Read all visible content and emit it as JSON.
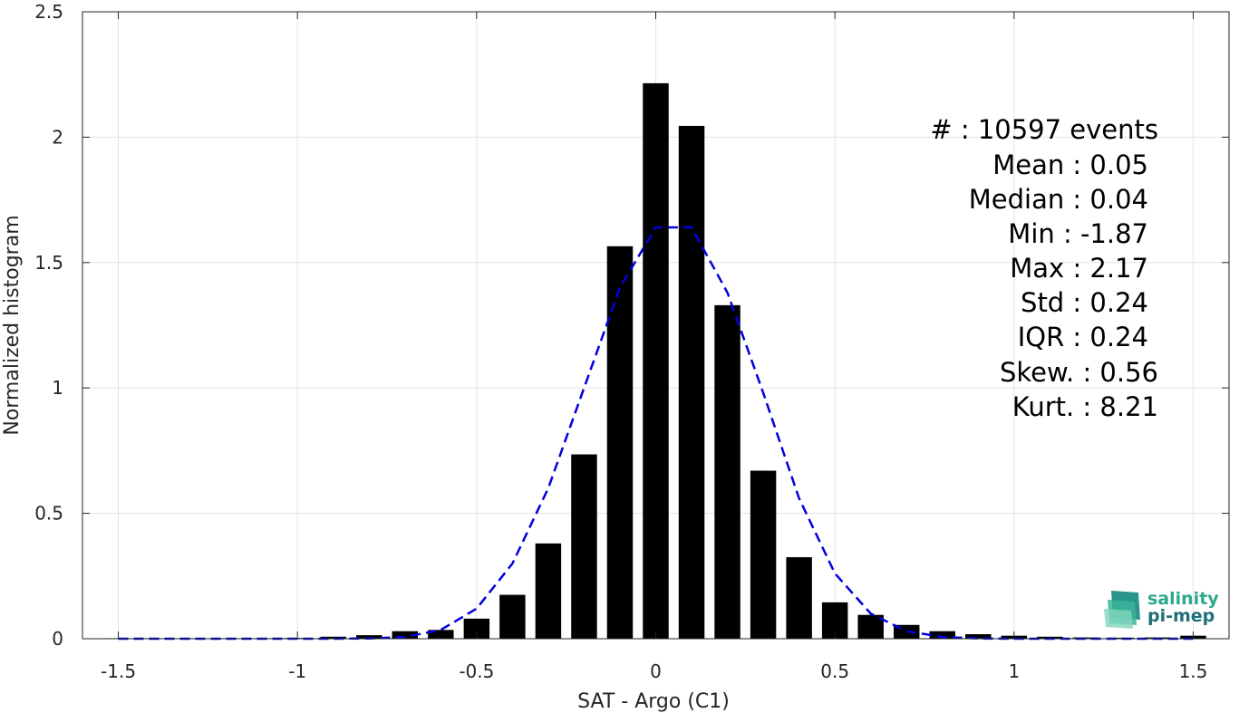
{
  "chart_data": {
    "type": "bar",
    "title": "",
    "xlabel": "SAT - Argo (C1)",
    "ylabel": "Normalized histogram",
    "xlim": [
      -1.6,
      1.6
    ],
    "ylim": [
      0,
      2.5
    ],
    "grid": true,
    "x_ticks": [
      "-1.5",
      "-1",
      "-0.5",
      "0",
      "0.5",
      "1",
      "1.5"
    ],
    "y_ticks": [
      "0",
      "0.5",
      "1",
      "1.5",
      "2",
      "2.5"
    ],
    "bin_width": 0.1,
    "histogram": {
      "x": [
        -1.5,
        -1.4,
        -1.3,
        -1.2,
        -1.1,
        -1.0,
        -0.9,
        -0.8,
        -0.7,
        -0.6,
        -0.5,
        -0.4,
        -0.3,
        -0.2,
        -0.1,
        0.0,
        0.1,
        0.2,
        0.3,
        0.4,
        0.5,
        0.6,
        0.7,
        0.8,
        0.9,
        1.0,
        1.1,
        1.2,
        1.3,
        1.4,
        1.5
      ],
      "values": [
        0.002,
        0.002,
        0.002,
        0.002,
        0.002,
        0.003,
        0.008,
        0.014,
        0.03,
        0.035,
        0.08,
        0.175,
        0.38,
        0.735,
        1.565,
        2.215,
        2.045,
        1.33,
        0.67,
        0.325,
        0.145,
        0.095,
        0.055,
        0.03,
        0.018,
        0.012,
        0.008,
        0.005,
        0.004,
        0.005,
        0.012
      ],
      "color": "#000000"
    },
    "fit_curve": {
      "style": "dashed",
      "color": "#0000dd",
      "x": [
        -1.5,
        -1.4,
        -1.3,
        -1.2,
        -1.1,
        -1.0,
        -0.9,
        -0.8,
        -0.7,
        -0.6,
        -0.5,
        -0.4,
        -0.3,
        -0.2,
        -0.1,
        0.0,
        0.1,
        0.2,
        0.3,
        0.4,
        0.5,
        0.6,
        0.7,
        0.8,
        0.9,
        1.0,
        1.1,
        1.2,
        1.3,
        1.4,
        1.5
      ],
      "values": [
        0,
        0,
        0,
        0,
        0,
        0,
        0,
        0.001,
        0.007,
        0.035,
        0.12,
        0.3,
        0.6,
        1.0,
        1.4,
        1.64,
        1.64,
        1.38,
        0.98,
        0.56,
        0.26,
        0.1,
        0.03,
        0.007,
        0.001,
        0,
        0,
        0,
        0,
        0,
        0
      ]
    }
  },
  "stats": {
    "count": "#  : 10597 events",
    "mean": "Mean : 0.05",
    "median": "Median : 0.04",
    "min": "Min : -1.87",
    "max": "Max : 2.17",
    "std": "Std : 0.24",
    "iqr": "IQR : 0.24",
    "skew": "Skew. : 0.56",
    "kurt": "Kurt. : 8.21"
  },
  "logo": {
    "line1": "salinity",
    "line2": "pi-mep",
    "color1": "#2aa88a",
    "color2": "#1f6f78"
  }
}
